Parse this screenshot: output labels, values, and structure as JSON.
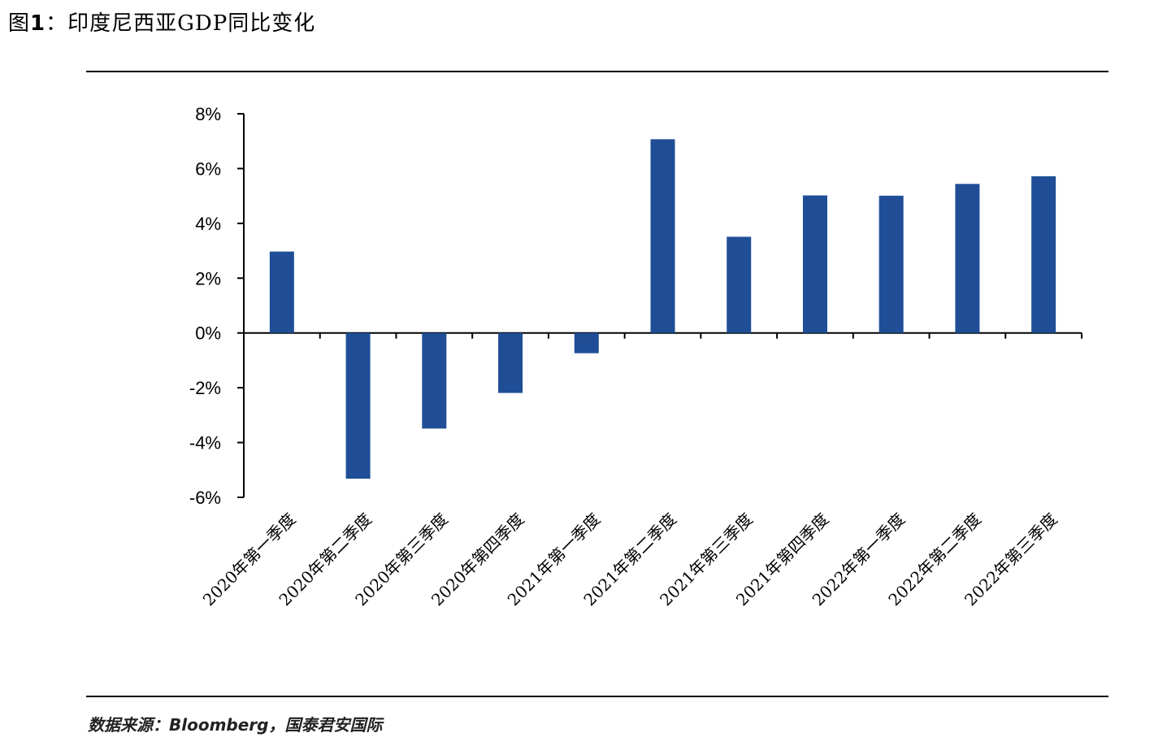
{
  "figure": {
    "label_prefix": "图",
    "label_number": "1",
    "separator": "：",
    "title": "印度尼西亚GDP同比变化"
  },
  "source": "数据来源：Bloomberg，国泰君安国际",
  "chart_data": {
    "type": "bar",
    "title": "印度尼西亚GDP同比变化",
    "categories": [
      "2020年第一季度",
      "2020年第二季度",
      "2020年第三季度",
      "2020年第四季度",
      "2021年第一季度",
      "2021年第二季度",
      "2021年第三季度",
      "2021年第四季度",
      "2022年第一季度",
      "2022年第二季度",
      "2022年第三季度"
    ],
    "values": [
      2.97,
      -5.32,
      -3.49,
      -2.19,
      -0.74,
      7.07,
      3.51,
      5.02,
      5.01,
      5.44,
      5.72
    ],
    "yticks": [
      "8%",
      "6%",
      "4%",
      "2%",
      "0%",
      "-2%",
      "-4%",
      "-6%"
    ],
    "ylim": [
      -6,
      8
    ],
    "bar_color": "#1f4e96",
    "xlabel": "",
    "ylabel": ""
  }
}
